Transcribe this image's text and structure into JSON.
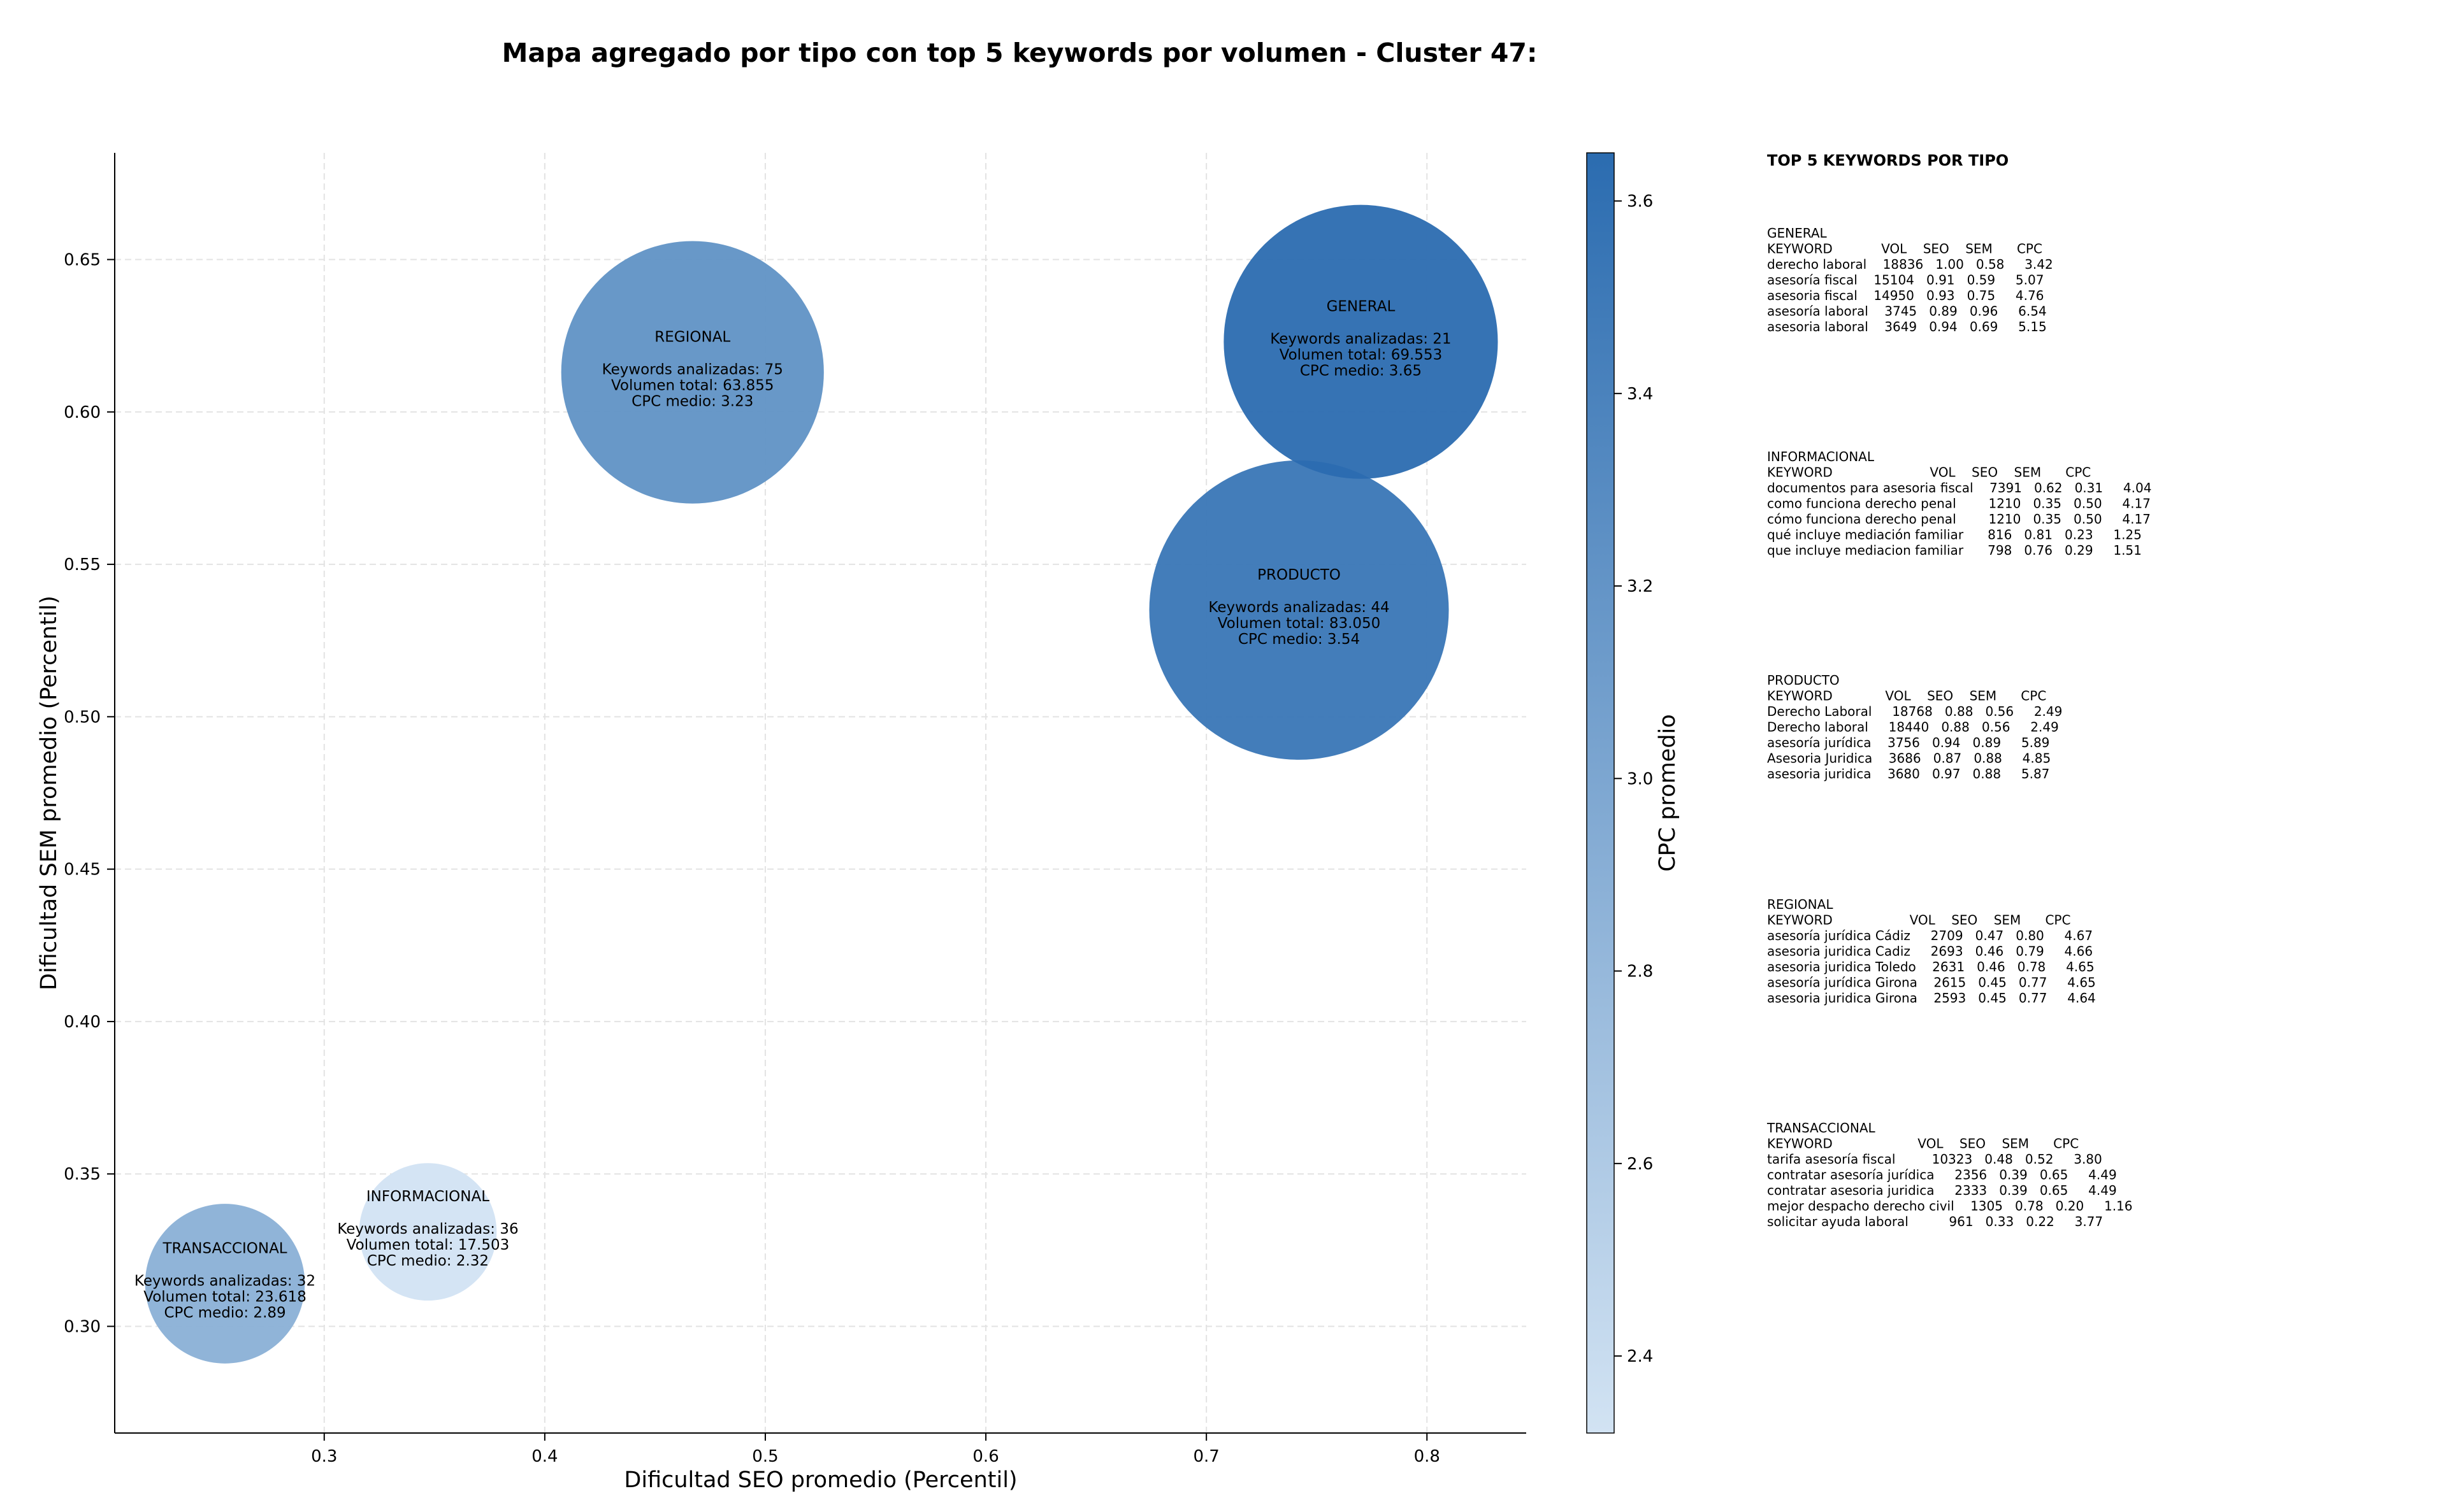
{
  "chart_data": {
    "type": "scatter",
    "title": "Mapa agregado por tipo con top 5 keywords por volumen - Cluster 47:",
    "xlabel": "Dificultad SEO promedio (Percentil)",
    "ylabel": "Dificultad SEM promedio (Percentil)",
    "xlim": [
      0.205,
      0.845
    ],
    "ylim": [
      0.265,
      0.685
    ],
    "xticks": [
      "0.3",
      "0.4",
      "0.5",
      "0.6",
      "0.7",
      "0.8"
    ],
    "yticks": [
      "0.30",
      "0.35",
      "0.40",
      "0.45",
      "0.50",
      "0.55",
      "0.60",
      "0.65"
    ],
    "grid": true,
    "size_encoding": "Volumen total",
    "color_encoding": "CPC promedio",
    "colorbar": {
      "label": "CPC promedio",
      "min": 2.32,
      "max": 3.65,
      "ticks": [
        "2.4",
        "2.6",
        "2.8",
        "3.0",
        "3.2",
        "3.4",
        "3.6"
      ],
      "color_low": "#d2e3f3",
      "color_high": "#2b6cb0"
    },
    "points": [
      {
        "name": "GENERAL",
        "x": 0.77,
        "y": 0.623,
        "keywords": "Keywords analizadas: 21",
        "volume": "Volumen total: 69.553",
        "cpc": "CPC medio: 3.65",
        "volume_value": 69553,
        "cpc_value": 3.65
      },
      {
        "name": "REGIONAL",
        "x": 0.467,
        "y": 0.613,
        "keywords": "Keywords analizadas: 75",
        "volume": "Volumen total: 63.855",
        "cpc": "CPC medio: 3.23",
        "volume_value": 63855,
        "cpc_value": 3.23
      },
      {
        "name": "PRODUCTO",
        "x": 0.742,
        "y": 0.535,
        "keywords": "Keywords analizadas: 44",
        "volume": "Volumen total: 83.050",
        "cpc": "CPC medio: 3.54",
        "volume_value": 83050,
        "cpc_value": 3.54
      },
      {
        "name": "INFORMACIONAL",
        "x": 0.347,
        "y": 0.331,
        "keywords": "Keywords analizadas: 36",
        "volume": "Volumen total: 17.503",
        "cpc": "CPC medio: 2.32",
        "volume_value": 17503,
        "cpc_value": 2.32
      },
      {
        "name": "TRANSACCIONAL",
        "x": 0.255,
        "y": 0.314,
        "keywords": "Keywords analizadas: 32",
        "volume": "Volumen total: 23.618",
        "cpc": "CPC medio: 2.89",
        "volume_value": 23618,
        "cpc_value": 2.89
      }
    ]
  },
  "keyword_panel": {
    "heading": "TOP 5 KEYWORDS POR TIPO",
    "groups": [
      {
        "name": "GENERAL",
        "header": "KEYWORD            VOL    SEO    SEM      CPC",
        "rows": [
          "derecho laboral    18836   1.00   0.58     3.42",
          "asesoría fiscal    15104   0.91   0.59     5.07",
          "asesoria fiscal    14950   0.93   0.75     4.76",
          "asesoría laboral    3745   0.89   0.96     6.54",
          "asesoria laboral    3649   0.94   0.69     5.15"
        ]
      },
      {
        "name": "INFORMACIONAL",
        "header": "KEYWORD                        VOL    SEO    SEM      CPC",
        "rows": [
          "documentos para asesoria fiscal    7391   0.62   0.31     4.04",
          "como funciona derecho penal        1210   0.35   0.50     4.17",
          "cómo funciona derecho penal        1210   0.35   0.50     4.17",
          "qué incluye mediación familiar      816   0.81   0.23     1.25",
          "que incluye mediacion familiar      798   0.76   0.29     1.51"
        ]
      },
      {
        "name": "PRODUCTO",
        "header": "KEYWORD             VOL    SEO    SEM      CPC",
        "rows": [
          "Derecho Laboral     18768   0.88   0.56     2.49",
          "Derecho laboral     18440   0.88   0.56     2.49",
          "asesoría jurídica    3756   0.94   0.89     5.89",
          "Asesoria Juridica    3686   0.87   0.88     4.85",
          "asesoria juridica    3680   0.97   0.88     5.87"
        ]
      },
      {
        "name": "REGIONAL",
        "header": "KEYWORD                   VOL    SEO    SEM      CPC",
        "rows": [
          "asesoría jurídica Cádiz     2709   0.47   0.80     4.67",
          "asesoria juridica Cadiz     2693   0.46   0.79     4.66",
          "asesoria juridica Toledo    2631   0.46   0.78     4.65",
          "asesoría jurídica Girona    2615   0.45   0.77     4.65",
          "asesoria juridica Girona    2593   0.45   0.77     4.64"
        ]
      },
      {
        "name": "TRANSACCIONAL",
        "header": "KEYWORD                     VOL    SEO    SEM      CPC",
        "rows": [
          "tarifa asesoría fiscal         10323   0.48   0.52     3.80",
          "contratar asesoría jurídica     2356   0.39   0.65     4.49",
          "contratar asesoria juridica     2333   0.39   0.65     4.49",
          "mejor despacho derecho civil    1305   0.78   0.20     1.16",
          "solicitar ayuda laboral          961   0.33   0.22     3.77"
        ]
      }
    ]
  }
}
